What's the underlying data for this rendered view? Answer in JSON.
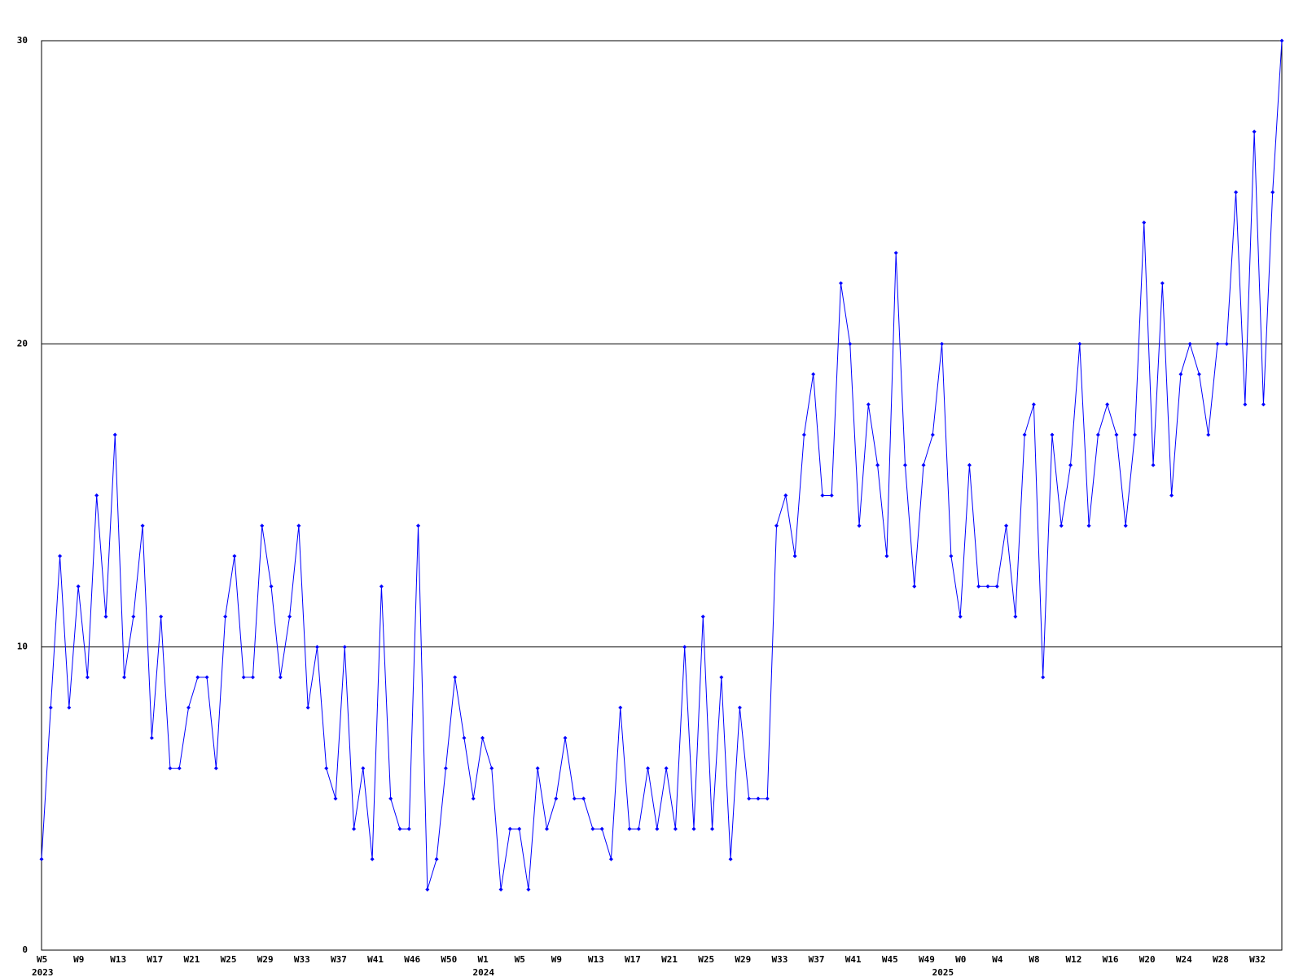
{
  "chart_data": {
    "type": "line",
    "categories": [
      "W5",
      null,
      null,
      null,
      "W9",
      null,
      null,
      null,
      "W13",
      null,
      null,
      null,
      "W17",
      null,
      null,
      null,
      "W21",
      null,
      null,
      null,
      "W25",
      null,
      null,
      null,
      "W29",
      null,
      null,
      null,
      "W33",
      null,
      null,
      null,
      "W37",
      null,
      null,
      null,
      "W41",
      null,
      null,
      null,
      "W46",
      null,
      null,
      null,
      "W50",
      null,
      null,
      null,
      "W1",
      null,
      null,
      null,
      "W5",
      null,
      null,
      null,
      "W9",
      null,
      null,
      null,
      "W13",
      null,
      null,
      null,
      "W17",
      null,
      null,
      null,
      "W21",
      null,
      null,
      null,
      "W25",
      null,
      null,
      null,
      "W29",
      null,
      null,
      null,
      "W33",
      null,
      null,
      null,
      "W37",
      null,
      null,
      null,
      "W41",
      null,
      null,
      null,
      "W45",
      null,
      null,
      null,
      "W49",
      null,
      null,
      null,
      "W0",
      null,
      null,
      null,
      "W4",
      null,
      null,
      null,
      "W8",
      null,
      null,
      null,
      "W12",
      null,
      null,
      null,
      "W16",
      null,
      null,
      null,
      "W20",
      null,
      null,
      null,
      "W24",
      null,
      null,
      null,
      "W28",
      null,
      null,
      null,
      "W32",
      null,
      null,
      null
    ],
    "year_labels": [
      "2023",
      null,
      null,
      null,
      null,
      null,
      null,
      null,
      null,
      null,
      null,
      null,
      null,
      null,
      null,
      null,
      null,
      null,
      null,
      null,
      null,
      null,
      null,
      null,
      null,
      null,
      null,
      null,
      null,
      null,
      null,
      null,
      null,
      null,
      null,
      null,
      null,
      null,
      null,
      null,
      null,
      null,
      null,
      null,
      null,
      null,
      null,
      null,
      "2024",
      null,
      null,
      null,
      null,
      null,
      null,
      null,
      null,
      null,
      null,
      null,
      null,
      null,
      null,
      null,
      null,
      null,
      null,
      null,
      null,
      null,
      null,
      null,
      null,
      null,
      null,
      null,
      null,
      null,
      null,
      null,
      null,
      null,
      null,
      null,
      null,
      null,
      null,
      null,
      null,
      null,
      null,
      null,
      null,
      null,
      null,
      null,
      null,
      null,
      "2025",
      null,
      null,
      null,
      null,
      null,
      null,
      null,
      null,
      null,
      null,
      null,
      null,
      null,
      null,
      null,
      null,
      null,
      null,
      null,
      null,
      null,
      null,
      null,
      null,
      null,
      null,
      null,
      null,
      null,
      null,
      null,
      null,
      null,
      null,
      null
    ],
    "values": [
      3,
      8,
      13,
      8,
      12,
      9,
      15,
      11,
      17,
      9,
      11,
      14,
      7,
      11,
      6,
      6,
      8,
      9,
      9,
      6,
      11,
      13,
      9,
      9,
      14,
      12,
      9,
      11,
      14,
      8,
      10,
      6,
      5,
      10,
      4,
      6,
      3,
      12,
      5,
      4,
      4,
      14,
      2,
      3,
      6,
      9,
      7,
      5,
      7,
      6,
      2,
      4,
      4,
      2,
      6,
      4,
      5,
      7,
      5,
      5,
      4,
      4,
      3,
      8,
      4,
      4,
      6,
      4,
      6,
      4,
      10,
      4,
      11,
      4,
      9,
      3,
      8,
      5,
      5,
      5,
      14,
      15,
      13,
      17,
      19,
      15,
      15,
      22,
      20,
      14,
      18,
      16,
      13,
      23,
      16,
      12,
      16,
      17,
      20,
      13,
      11,
      16,
      12,
      12,
      12,
      14,
      11,
      17,
      18,
      9,
      17,
      14,
      16,
      20,
      14,
      17,
      18,
      17,
      14,
      17,
      24,
      16,
      22,
      15,
      19,
      20,
      19,
      17,
      20,
      20,
      25,
      18,
      27,
      18,
      25,
      30
    ],
    "color": "#0000ff",
    "ylim": [
      0,
      30
    ],
    "yticks": [
      0,
      10,
      20,
      30
    ],
    "grid": true
  }
}
